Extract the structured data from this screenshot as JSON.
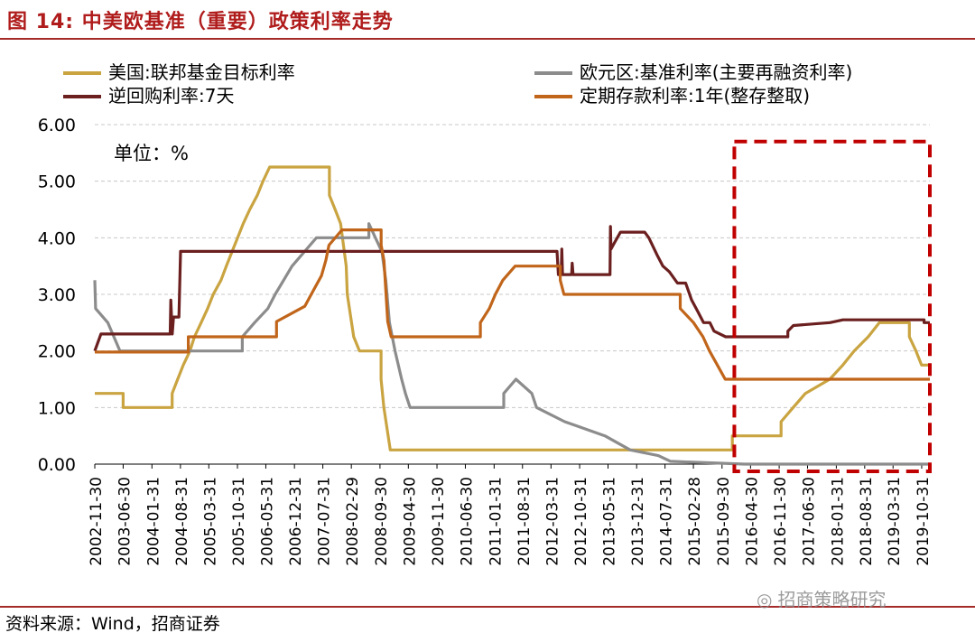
{
  "figure": {
    "title": "图 14:  中美欧基准（重要）政策利率走势",
    "source_label": "资料来源：",
    "source_text": "Wind，招商证券",
    "watermark": "招商策略研究"
  },
  "chart_data": {
    "type": "line",
    "unit_label": "单位：%",
    "ylim": [
      0,
      6
    ],
    "y_ticks": [
      "0.00",
      "1.00",
      "2.00",
      "3.00",
      "4.00",
      "5.00",
      "6.00"
    ],
    "x_range": [
      "2002-11-30",
      "2019-12-31"
    ],
    "x_ticks": [
      "2002-11-30",
      "2003-06-30",
      "2004-01-31",
      "2004-08-31",
      "2005-03-31",
      "2005-10-31",
      "2006-05-31",
      "2006-12-31",
      "2007-07-31",
      "2008-02-29",
      "2008-09-30",
      "2009-04-30",
      "2009-11-30",
      "2010-06-30",
      "2011-01-31",
      "2011-08-31",
      "2012-03-31",
      "2012-10-31",
      "2013-05-31",
      "2013-12-31",
      "2014-07-31",
      "2015-02-28",
      "2015-09-30",
      "2016-04-30",
      "2016-11-30",
      "2017-06-30",
      "2018-01-31",
      "2018-08-31",
      "2019-03-31",
      "2019-10-31"
    ],
    "grid": "horizontal dashed",
    "legend_position": "top",
    "highlight_box": {
      "x": [
        "2015-12-31",
        "2019-12-31"
      ],
      "y": [
        0,
        5.7
      ],
      "color": "#c00000",
      "style": "dashed"
    },
    "series": [
      {
        "name": "美国:联邦基金目标利率",
        "color": "#c9a441",
        "points": [
          [
            "2002-11-30",
            1.25
          ],
          [
            "2003-06-30",
            1.25
          ],
          [
            "2003-06-30",
            1.0
          ],
          [
            "2004-06-30",
            1.0
          ],
          [
            "2004-06-30",
            1.25
          ],
          [
            "2004-08-10",
            1.5
          ],
          [
            "2004-09-21",
            1.75
          ],
          [
            "2004-11-10",
            2.0
          ],
          [
            "2004-12-14",
            2.25
          ],
          [
            "2005-02-02",
            2.5
          ],
          [
            "2005-03-22",
            2.75
          ],
          [
            "2005-05-03",
            3.0
          ],
          [
            "2005-06-30",
            3.25
          ],
          [
            "2005-08-09",
            3.5
          ],
          [
            "2005-09-20",
            3.75
          ],
          [
            "2005-11-01",
            4.0
          ],
          [
            "2005-12-13",
            4.25
          ],
          [
            "2006-01-31",
            4.5
          ],
          [
            "2006-03-28",
            4.75
          ],
          [
            "2006-05-10",
            5.0
          ],
          [
            "2006-06-29",
            5.25
          ],
          [
            "2007-09-18",
            5.25
          ],
          [
            "2007-09-18",
            4.75
          ],
          [
            "2007-10-31",
            4.5
          ],
          [
            "2007-12-11",
            4.25
          ],
          [
            "2008-01-22",
            3.5
          ],
          [
            "2008-01-30",
            3.0
          ],
          [
            "2008-03-18",
            2.25
          ],
          [
            "2008-04-30",
            2.0
          ],
          [
            "2008-10-08",
            2.0
          ],
          [
            "2008-10-08",
            1.5
          ],
          [
            "2008-10-29",
            1.0
          ],
          [
            "2008-12-16",
            0.25
          ],
          [
            "2015-12-16",
            0.25
          ],
          [
            "2015-12-16",
            0.5
          ],
          [
            "2016-12-14",
            0.5
          ],
          [
            "2016-12-14",
            0.75
          ],
          [
            "2017-03-15",
            1.0
          ],
          [
            "2017-06-14",
            1.25
          ],
          [
            "2017-12-13",
            1.5
          ],
          [
            "2018-03-21",
            1.75
          ],
          [
            "2018-06-13",
            2.0
          ],
          [
            "2018-09-26",
            2.25
          ],
          [
            "2018-12-19",
            2.5
          ],
          [
            "2019-07-31",
            2.5
          ],
          [
            "2019-07-31",
            2.25
          ],
          [
            "2019-09-18",
            2.0
          ],
          [
            "2019-10-30",
            1.75
          ],
          [
            "2019-12-31",
            1.75
          ]
        ]
      },
      {
        "name": "欧元区:基准利率(主要再融资利率)",
        "color": "#8c8c8c",
        "points": [
          [
            "2002-11-30",
            3.25
          ],
          [
            "2002-12-06",
            2.75
          ],
          [
            "2003-03-07",
            2.5
          ],
          [
            "2003-06-06",
            2.0
          ],
          [
            "2005-12-06",
            2.0
          ],
          [
            "2005-12-06",
            2.25
          ],
          [
            "2006-03-08",
            2.5
          ],
          [
            "2006-06-15",
            2.75
          ],
          [
            "2006-08-09",
            3.0
          ],
          [
            "2006-10-11",
            3.25
          ],
          [
            "2006-12-13",
            3.5
          ],
          [
            "2007-03-14",
            3.75
          ],
          [
            "2007-06-13",
            4.0
          ],
          [
            "2008-07-09",
            4.0
          ],
          [
            "2008-07-09",
            4.25
          ],
          [
            "2008-10-15",
            3.75
          ],
          [
            "2008-11-12",
            3.25
          ],
          [
            "2008-12-10",
            2.5
          ],
          [
            "2009-01-21",
            2.0
          ],
          [
            "2009-03-11",
            1.5
          ],
          [
            "2009-04-08",
            1.25
          ],
          [
            "2009-05-13",
            1.0
          ],
          [
            "2011-04-13",
            1.0
          ],
          [
            "2011-04-13",
            1.25
          ],
          [
            "2011-07-13",
            1.5
          ],
          [
            "2011-11-09",
            1.25
          ],
          [
            "2011-12-14",
            1.0
          ],
          [
            "2012-07-11",
            0.75
          ],
          [
            "2013-05-08",
            0.5
          ],
          [
            "2013-11-13",
            0.25
          ],
          [
            "2014-06-11",
            0.15
          ],
          [
            "2014-09-10",
            0.05
          ],
          [
            "2016-03-16",
            0.0
          ],
          [
            "2019-12-31",
            0.0
          ]
        ]
      },
      {
        "name": "逆回购利率:7天",
        "color": "#6b1f1f",
        "points": [
          [
            "2002-11-30",
            2.0
          ],
          [
            "2003-01-15",
            2.3
          ],
          [
            "2004-06-15",
            2.3
          ],
          [
            "2004-06-20",
            2.9
          ],
          [
            "2004-07-01",
            2.3
          ],
          [
            "2004-07-10",
            2.6
          ],
          [
            "2004-08-20",
            2.6
          ],
          [
            "2004-09-01",
            3.76
          ],
          [
            "2012-05-15",
            3.76
          ],
          [
            "2012-05-25",
            3.35
          ],
          [
            "2012-06-15",
            3.35
          ],
          [
            "2012-06-20",
            3.8
          ],
          [
            "2012-06-25",
            3.35
          ],
          [
            "2012-09-01",
            3.35
          ],
          [
            "2012-09-05",
            3.55
          ],
          [
            "2012-09-12",
            3.35
          ],
          [
            "2013-06-10",
            3.35
          ],
          [
            "2013-06-15",
            3.35
          ],
          [
            "2013-06-18",
            4.2
          ],
          [
            "2013-06-22",
            3.8
          ],
          [
            "2013-07-15",
            3.9
          ],
          [
            "2013-09-01",
            4.1
          ],
          [
            "2014-03-01",
            4.1
          ],
          [
            "2014-04-01",
            4.0
          ],
          [
            "2014-06-01",
            3.7
          ],
          [
            "2014-07-15",
            3.5
          ],
          [
            "2014-09-01",
            3.4
          ],
          [
            "2014-11-01",
            3.2
          ],
          [
            "2015-01-01",
            3.2
          ],
          [
            "2015-02-15",
            2.9
          ],
          [
            "2015-04-01",
            2.7
          ],
          [
            "2015-05-15",
            2.5
          ],
          [
            "2015-07-01",
            2.5
          ],
          [
            "2015-08-01",
            2.35
          ],
          [
            "2015-10-27",
            2.25
          ],
          [
            "2017-02-03",
            2.25
          ],
          [
            "2017-02-03",
            2.35
          ],
          [
            "2017-03-16",
            2.45
          ],
          [
            "2017-12-14",
            2.5
          ],
          [
            "2018-03-22",
            2.55
          ],
          [
            "2019-11-18",
            2.55
          ],
          [
            "2019-11-18",
            2.5
          ],
          [
            "2019-12-31",
            2.5
          ]
        ]
      },
      {
        "name": "定期存款利率:1年(整存整取)",
        "color": "#c0651a",
        "points": [
          [
            "2002-11-30",
            1.98
          ],
          [
            "2004-10-29",
            1.98
          ],
          [
            "2004-10-29",
            2.25
          ],
          [
            "2006-08-19",
            2.25
          ],
          [
            "2006-08-19",
            2.52
          ],
          [
            "2007-03-18",
            2.79
          ],
          [
            "2007-05-19",
            3.06
          ],
          [
            "2007-07-21",
            3.33
          ],
          [
            "2007-08-22",
            3.6
          ],
          [
            "2007-09-15",
            3.87
          ],
          [
            "2007-12-21",
            4.14
          ],
          [
            "2008-10-09",
            4.14
          ],
          [
            "2008-10-09",
            3.87
          ],
          [
            "2008-10-30",
            3.6
          ],
          [
            "2008-11-27",
            2.52
          ],
          [
            "2008-12-23",
            2.25
          ],
          [
            "2010-10-20",
            2.25
          ],
          [
            "2010-10-20",
            2.5
          ],
          [
            "2010-12-26",
            2.75
          ],
          [
            "2011-02-09",
            3.0
          ],
          [
            "2011-04-06",
            3.25
          ],
          [
            "2011-07-07",
            3.5
          ],
          [
            "2012-06-08",
            3.5
          ],
          [
            "2012-06-08",
            3.25
          ],
          [
            "2012-07-06",
            3.0
          ],
          [
            "2014-11-22",
            3.0
          ],
          [
            "2014-11-22",
            2.75
          ],
          [
            "2015-03-01",
            2.5
          ],
          [
            "2015-05-11",
            2.25
          ],
          [
            "2015-06-28",
            2.0
          ],
          [
            "2015-08-26",
            1.75
          ],
          [
            "2015-10-24",
            1.5
          ],
          [
            "2019-12-31",
            1.5
          ]
        ]
      }
    ]
  }
}
